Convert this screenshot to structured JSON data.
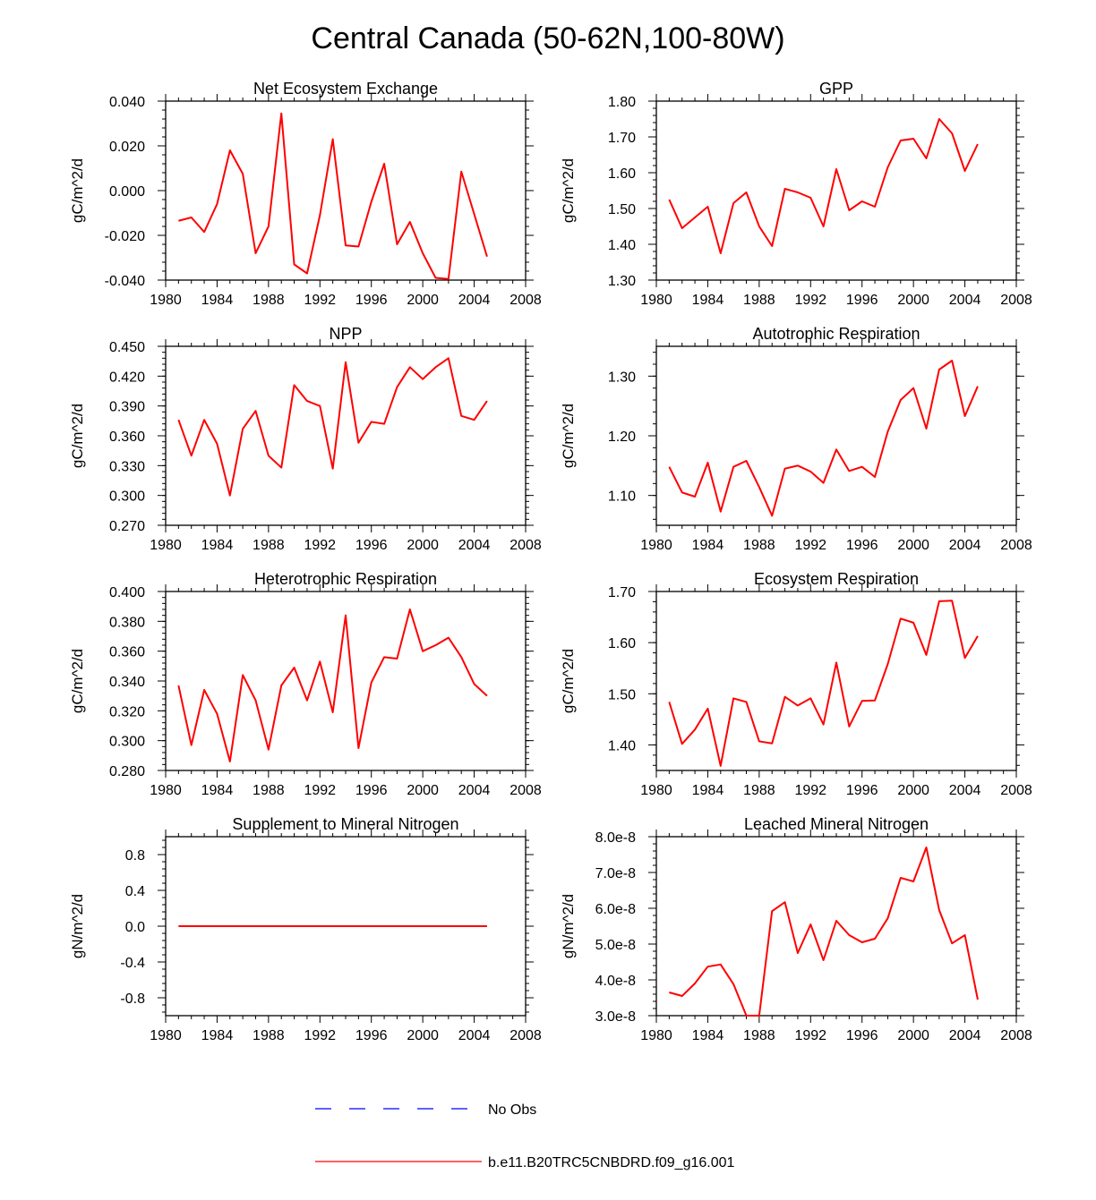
{
  "figure": {
    "title": "Central Canada (50-62N,100-80W)",
    "line_color": "#ff0000",
    "obs_color": "#0000ff"
  },
  "legend": {
    "entries": [
      {
        "label": "No Obs",
        "style": "dashed",
        "color": "#0000ff"
      },
      {
        "label": "b.e11.B20TRC5CNBDRD.f09_g16.001",
        "style": "solid",
        "color": "#ff0000"
      }
    ]
  },
  "chart_data": [
    {
      "type": "line",
      "title": "Net Ecosystem Exchange",
      "ylabel": "gC/m^2/d",
      "xlim": [
        1980,
        2008
      ],
      "xticks": [
        "1980",
        "1984",
        "1988",
        "1992",
        "1996",
        "2000",
        "2004",
        "2008"
      ],
      "ylim": [
        -0.04,
        0.04
      ],
      "yticks": [
        "-0.040",
        "-0.020",
        "0.000",
        "0.020",
        "0.040"
      ],
      "ytick_values": [
        -0.04,
        -0.02,
        0.0,
        0.02,
        0.04
      ],
      "x": [
        1981,
        1982,
        1983,
        1984,
        1985,
        1986,
        1987,
        1988,
        1989,
        1990,
        1991,
        1992,
        1993,
        1994,
        1995,
        1996,
        1997,
        1998,
        1999,
        2000,
        2001,
        2002,
        2003,
        2004,
        2005
      ],
      "series": [
        {
          "name": "b.e11.B20TRC5CNBDRD.f09_g16.001",
          "values": [
            -0.0135,
            -0.012,
            -0.0185,
            -0.006,
            0.018,
            0.0075,
            -0.028,
            -0.016,
            0.0345,
            -0.033,
            -0.037,
            -0.011,
            0.023,
            -0.0245,
            -0.025,
            -0.005,
            0.012,
            -0.024,
            -0.014,
            -0.028,
            -0.039,
            -0.0395,
            0.0085,
            -0.0105,
            -0.0295
          ]
        }
      ]
    },
    {
      "type": "line",
      "title": "GPP",
      "ylabel": "gC/m^2/d",
      "xlim": [
        1980,
        2008
      ],
      "xticks": [
        "1980",
        "1984",
        "1988",
        "1992",
        "1996",
        "2000",
        "2004",
        "2008"
      ],
      "ylim": [
        1.3,
        1.8
      ],
      "yticks": [
        "1.30",
        "1.40",
        "1.50",
        "1.60",
        "1.70",
        "1.80"
      ],
      "ytick_values": [
        1.3,
        1.4,
        1.5,
        1.6,
        1.7,
        1.8
      ],
      "x": [
        1981,
        1982,
        1983,
        1984,
        1985,
        1986,
        1987,
        1988,
        1989,
        1990,
        1991,
        1992,
        1993,
        1994,
        1995,
        1996,
        1997,
        1998,
        1999,
        2000,
        2001,
        2002,
        2003,
        2004,
        2005
      ],
      "series": [
        {
          "name": "b.e11.B20TRC5CNBDRD.f09_g16.001",
          "values": [
            1.525,
            1.445,
            1.475,
            1.505,
            1.375,
            1.515,
            1.545,
            1.45,
            1.395,
            1.555,
            1.545,
            1.53,
            1.45,
            1.61,
            1.495,
            1.52,
            1.505,
            1.615,
            1.69,
            1.695,
            1.64,
            1.75,
            1.71,
            1.605,
            1.68
          ]
        }
      ]
    },
    {
      "type": "line",
      "title": "NPP",
      "ylabel": "gC/m^2/d",
      "xlim": [
        1980,
        2008
      ],
      "xticks": [
        "1980",
        "1984",
        "1988",
        "1992",
        "1996",
        "2000",
        "2004",
        "2008"
      ],
      "ylim": [
        0.27,
        0.45
      ],
      "yticks": [
        "0.270",
        "0.300",
        "0.330",
        "0.360",
        "0.390",
        "0.420",
        "0.450"
      ],
      "ytick_values": [
        0.27,
        0.3,
        0.33,
        0.36,
        0.39,
        0.42,
        0.45
      ],
      "x": [
        1981,
        1982,
        1983,
        1984,
        1985,
        1986,
        1987,
        1988,
        1989,
        1990,
        1991,
        1992,
        1993,
        1994,
        1995,
        1996,
        1997,
        1998,
        1999,
        2000,
        2001,
        2002,
        2003,
        2004,
        2005
      ],
      "series": [
        {
          "name": "b.e11.B20TRC5CNBDRD.f09_g16.001",
          "values": [
            0.376,
            0.34,
            0.376,
            0.352,
            0.3,
            0.367,
            0.385,
            0.34,
            0.328,
            0.411,
            0.395,
            0.39,
            0.327,
            0.434,
            0.353,
            0.374,
            0.372,
            0.409,
            0.429,
            0.417,
            0.429,
            0.438,
            0.38,
            0.376,
            0.395
          ]
        }
      ]
    },
    {
      "type": "line",
      "title": "Autotrophic Respiration",
      "ylabel": "gC/m^2/d",
      "xlim": [
        1980,
        2008
      ],
      "xticks": [
        "1980",
        "1984",
        "1988",
        "1992",
        "1996",
        "2000",
        "2004",
        "2008"
      ],
      "ylim": [
        1.05,
        1.35
      ],
      "yticks": [
        "1.10",
        "1.20",
        "1.30"
      ],
      "ytick_values": [
        1.1,
        1.2,
        1.3
      ],
      "x": [
        1981,
        1982,
        1983,
        1984,
        1985,
        1986,
        1987,
        1988,
        1989,
        1990,
        1991,
        1992,
        1993,
        1994,
        1995,
        1996,
        1997,
        1998,
        1999,
        2000,
        2001,
        2002,
        2003,
        2004,
        2005
      ],
      "series": [
        {
          "name": "b.e11.B20TRC5CNBDRD.f09_g16.001",
          "values": [
            1.148,
            1.105,
            1.098,
            1.155,
            1.073,
            1.148,
            1.158,
            1.114,
            1.066,
            1.145,
            1.15,
            1.14,
            1.121,
            1.177,
            1.141,
            1.148,
            1.131,
            1.207,
            1.26,
            1.28,
            1.212,
            1.311,
            1.326,
            1.233,
            1.283
          ]
        }
      ]
    },
    {
      "type": "line",
      "title": "Heterotrophic Respiration",
      "ylabel": "gC/m^2/d",
      "xlim": [
        1980,
        2008
      ],
      "xticks": [
        "1980",
        "1984",
        "1988",
        "1992",
        "1996",
        "2000",
        "2004",
        "2008"
      ],
      "ylim": [
        0.28,
        0.4
      ],
      "yticks": [
        "0.280",
        "0.300",
        "0.320",
        "0.340",
        "0.360",
        "0.380",
        "0.400"
      ],
      "ytick_values": [
        0.28,
        0.3,
        0.32,
        0.34,
        0.36,
        0.38,
        0.4
      ],
      "x": [
        1981,
        1982,
        1983,
        1984,
        1985,
        1986,
        1987,
        1988,
        1989,
        1990,
        1991,
        1992,
        1993,
        1994,
        1995,
        1996,
        1997,
        1998,
        1999,
        2000,
        2001,
        2002,
        2003,
        2004,
        2005
      ],
      "series": [
        {
          "name": "b.e11.B20TRC5CNBDRD.f09_g16.001",
          "values": [
            0.337,
            0.297,
            0.334,
            0.318,
            0.286,
            0.344,
            0.327,
            0.294,
            0.337,
            0.349,
            0.327,
            0.353,
            0.319,
            0.384,
            0.295,
            0.339,
            0.356,
            0.355,
            0.388,
            0.36,
            0.364,
            0.369,
            0.356,
            0.338,
            0.33
          ]
        }
      ]
    },
    {
      "type": "line",
      "title": "Ecosystem Respiration",
      "ylabel": "gC/m^2/d",
      "xlim": [
        1980,
        2008
      ],
      "xticks": [
        "1980",
        "1984",
        "1988",
        "1992",
        "1996",
        "2000",
        "2004",
        "2008"
      ],
      "ylim": [
        1.35,
        1.7
      ],
      "yticks": [
        "1.40",
        "1.50",
        "1.60",
        "1.70"
      ],
      "ytick_values": [
        1.4,
        1.5,
        1.6,
        1.7
      ],
      "x": [
        1981,
        1982,
        1983,
        1984,
        1985,
        1986,
        1987,
        1988,
        1989,
        1990,
        1991,
        1992,
        1993,
        1994,
        1995,
        1996,
        1997,
        1998,
        1999,
        2000,
        2001,
        2002,
        2003,
        2004,
        2005
      ],
      "series": [
        {
          "name": "b.e11.B20TRC5CNBDRD.f09_g16.001",
          "values": [
            1.484,
            1.402,
            1.43,
            1.471,
            1.359,
            1.491,
            1.484,
            1.407,
            1.403,
            1.494,
            1.477,
            1.491,
            1.44,
            1.561,
            1.436,
            1.486,
            1.487,
            1.558,
            1.647,
            1.639,
            1.576,
            1.681,
            1.682,
            1.57,
            1.613
          ]
        }
      ]
    },
    {
      "type": "line",
      "title": "Supplement to Mineral Nitrogen",
      "ylabel": "gN/m^2/d",
      "xlim": [
        1980,
        2008
      ],
      "xticks": [
        "1980",
        "1984",
        "1988",
        "1992",
        "1996",
        "2000",
        "2004",
        "2008"
      ],
      "ylim": [
        -1.0,
        1.0
      ],
      "yticks": [
        "-0.8",
        "-0.4",
        "0.0",
        "0.4",
        "0.8"
      ],
      "ytick_values": [
        -0.8,
        -0.4,
        0.0,
        0.4,
        0.8
      ],
      "x": [
        1981,
        1982,
        1983,
        1984,
        1985,
        1986,
        1987,
        1988,
        1989,
        1990,
        1991,
        1992,
        1993,
        1994,
        1995,
        1996,
        1997,
        1998,
        1999,
        2000,
        2001,
        2002,
        2003,
        2004,
        2005
      ],
      "series": [
        {
          "name": "b.e11.B20TRC5CNBDRD.f09_g16.001",
          "values": [
            0,
            0,
            0,
            0,
            0,
            0,
            0,
            0,
            0,
            0,
            0,
            0,
            0,
            0,
            0,
            0,
            0,
            0,
            0,
            0,
            0,
            0,
            0,
            0,
            0
          ]
        }
      ]
    },
    {
      "type": "line",
      "title": "Leached Mineral Nitrogen",
      "ylabel": "gN/m^2/d",
      "xlim": [
        1980,
        2008
      ],
      "xticks": [
        "1980",
        "1984",
        "1988",
        "1992",
        "1996",
        "2000",
        "2004",
        "2008"
      ],
      "ylim": [
        3e-08,
        8e-08
      ],
      "yticks": [
        "3.0e-8",
        "4.0e-8",
        "5.0e-8",
        "6.0e-8",
        "7.0e-8",
        "8.0e-8"
      ],
      "ytick_values": [
        3e-08,
        4e-08,
        5e-08,
        6e-08,
        7e-08,
        8e-08
      ],
      "x": [
        1981,
        1982,
        1983,
        1984,
        1985,
        1986,
        1987,
        1988,
        1989,
        1990,
        1991,
        1992,
        1993,
        1994,
        1995,
        1996,
        1997,
        1998,
        1999,
        2000,
        2001,
        2002,
        2003,
        2004,
        2005
      ],
      "series": [
        {
          "name": "b.e11.B20TRC5CNBDRD.f09_g16.001",
          "values": [
            3.65e-08,
            3.55e-08,
            3.9e-08,
            4.37e-08,
            4.43e-08,
            3.88e-08,
            3e-08,
            3e-08,
            5.92e-08,
            6.17e-08,
            4.75e-08,
            5.55e-08,
            4.55e-08,
            5.65e-08,
            5.25e-08,
            5.05e-08,
            5.15e-08,
            5.72e-08,
            6.85e-08,
            6.75e-08,
            7.7e-08,
            5.95e-08,
            5.02e-08,
            5.25e-08,
            3.45e-08
          ]
        }
      ]
    }
  ]
}
